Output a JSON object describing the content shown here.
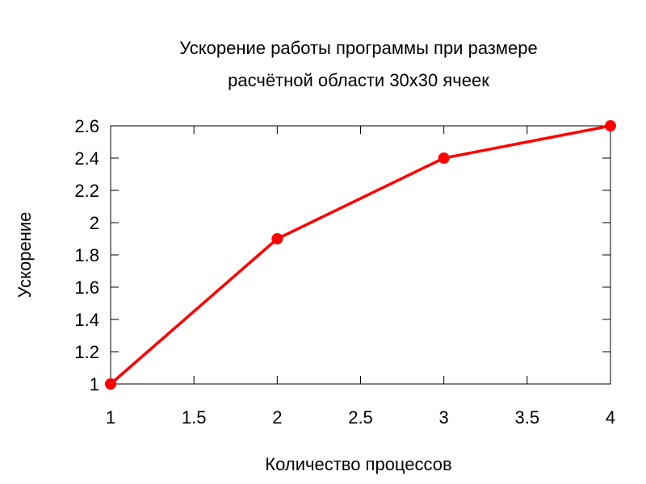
{
  "chart_data": {
    "type": "line",
    "title_lines": [
      "Ускорение работы программы при размере",
      "расчётной области 30x30 ячеек"
    ],
    "xlabel": "Количество процессов",
    "ylabel": "Ускорение",
    "xlim": [
      1,
      4
    ],
    "ylim": [
      1,
      2.6
    ],
    "x_ticks": [
      1,
      1.5,
      2,
      2.5,
      3,
      3.5,
      4
    ],
    "x_tick_labels": [
      "1",
      "1.5",
      "2",
      "2.5",
      "3",
      "3.5",
      "4"
    ],
    "y_ticks": [
      1,
      1.2,
      1.4,
      1.6,
      1.8,
      2,
      2.2,
      2.4,
      2.6
    ],
    "y_tick_labels": [
      "1",
      "1.2",
      "1.4",
      "1.6",
      "1.8",
      "2",
      "2.2",
      "2.4",
      "2.6"
    ],
    "grid": false,
    "legend": false,
    "series": [
      {
        "color": "#ff0000",
        "marker": "circle",
        "points": [
          {
            "x": 1,
            "y": 1.0
          },
          {
            "x": 2,
            "y": 1.9
          },
          {
            "x": 3,
            "y": 2.4
          },
          {
            "x": 4,
            "y": 2.6
          }
        ]
      }
    ]
  }
}
